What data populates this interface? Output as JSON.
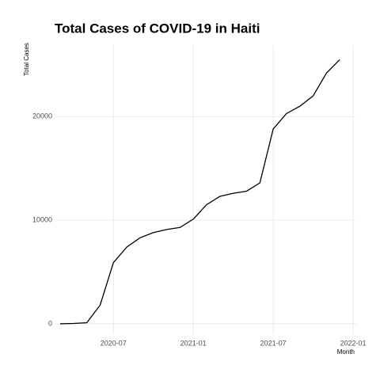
{
  "chart_data": {
    "type": "line",
    "title": "Total Cases of COVID-19 in Haiti",
    "x_label": "Month",
    "y_label": "Total Cases",
    "x": [
      "2020-03",
      "2020-04",
      "2020-05",
      "2020-06",
      "2020-07",
      "2020-08",
      "2020-09",
      "2020-10",
      "2020-11",
      "2020-12",
      "2021-01",
      "2021-02",
      "2021-03",
      "2021-04",
      "2021-05",
      "2021-06",
      "2021-07",
      "2021-08",
      "2021-09",
      "2021-10",
      "2021-11",
      "2021-12"
    ],
    "series": [
      {
        "name": "Total Cases",
        "color": "#000000",
        "values": [
          0,
          30,
          100,
          1800,
          5900,
          7400,
          8300,
          8800,
          9100,
          9300,
          10100,
          11500,
          12300,
          12600,
          12800,
          13600,
          18800,
          20300,
          21000,
          22000,
          24200,
          25500
        ]
      }
    ],
    "xlim": [
      "2020-03",
      "2022-01"
    ],
    "xticks": [
      "2020-07",
      "2021-01",
      "2021-07",
      "2022-01"
    ],
    "ylim": [
      -1000,
      26900
    ],
    "yticks": [
      0,
      10000,
      20000
    ],
    "grid": true
  }
}
